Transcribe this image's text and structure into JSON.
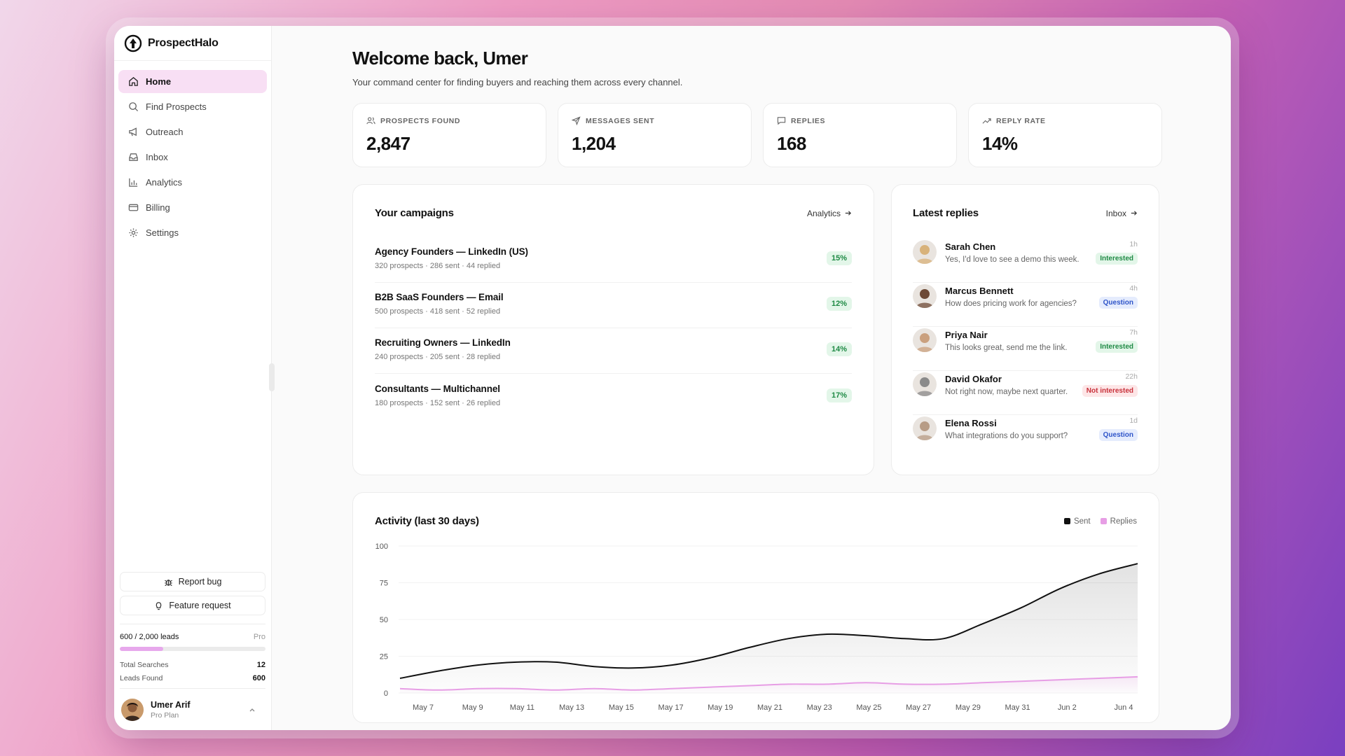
{
  "brand": {
    "name": "ProspectHalo"
  },
  "nav": [
    {
      "label": "Home",
      "icon": "home-icon",
      "active": true
    },
    {
      "label": "Find Prospects",
      "icon": "search-icon"
    },
    {
      "label": "Outreach",
      "icon": "megaphone-icon"
    },
    {
      "label": "Inbox",
      "icon": "inbox-icon"
    },
    {
      "label": "Analytics",
      "icon": "bar-chart-icon"
    },
    {
      "label": "Billing",
      "icon": "credit-card-icon"
    },
    {
      "label": "Settings",
      "icon": "gear-icon"
    }
  ],
  "sidebar": {
    "report_bug": "Report bug",
    "feature_request": "Feature request",
    "usage": {
      "label": "600 / 2,000 leads",
      "plan": "Pro",
      "fraction": 0.3
    },
    "total_searches_label": "Total Searches",
    "total_searches": "12",
    "leads_found_label": "Leads Found",
    "leads_found": "600",
    "user": {
      "name": "Umer Arif",
      "plan": "Pro Plan"
    }
  },
  "header": {
    "title": "Welcome back, Umer",
    "subtitle": "Your command center for finding buyers and reaching them across every channel."
  },
  "kpis": [
    {
      "label": "Prospects Found",
      "value": "2,847",
      "icon": "users-icon"
    },
    {
      "label": "Messages Sent",
      "value": "1,204",
      "icon": "send-icon"
    },
    {
      "label": "Replies",
      "value": "168",
      "icon": "message-icon"
    },
    {
      "label": "Reply Rate",
      "value": "14%",
      "icon": "trending-up-icon"
    }
  ],
  "campaigns": {
    "title": "Your campaigns",
    "link": "Analytics",
    "items": [
      {
        "name": "Agency Founders — LinkedIn (US)",
        "meta": "320 prospects · 286 sent · 44 replied",
        "rate": "15%"
      },
      {
        "name": "B2B SaaS Founders — Email",
        "meta": "500 prospects · 418 sent · 52 replied",
        "rate": "12%"
      },
      {
        "name": "Recruiting Owners — LinkedIn",
        "meta": "240 prospects · 205 sent · 28 replied",
        "rate": "14%"
      },
      {
        "name": "Consultants — Multichannel",
        "meta": "180 prospects · 152 sent · 26 replied",
        "rate": "17%"
      }
    ]
  },
  "replies": {
    "title": "Latest replies",
    "link": "Inbox",
    "items": [
      {
        "name": "Sarah Chen",
        "text": "Yes, I'd love to see a demo this week.",
        "time": "1h",
        "status": "Interested",
        "kind": "interested",
        "color": "#d8b27a"
      },
      {
        "name": "Marcus Bennett",
        "text": "How does pricing work for agencies?",
        "time": "4h",
        "status": "Question",
        "kind": "question",
        "color": "#6e4a36"
      },
      {
        "name": "Priya Nair",
        "text": "This looks great, send me the link.",
        "time": "7h",
        "status": "Interested",
        "kind": "interested",
        "color": "#caa07e"
      },
      {
        "name": "David Okafor",
        "text": "Not right now, maybe next quarter.",
        "time": "22h",
        "status": "Not interested",
        "kind": "not",
        "color": "#8a8a8a"
      },
      {
        "name": "Elena Rossi",
        "text": "What integrations do you support?",
        "time": "1d",
        "status": "Question",
        "kind": "question",
        "color": "#b79c86"
      }
    ]
  },
  "activity": {
    "title": "Activity (last 30 days)",
    "legend": [
      "Sent",
      "Replies"
    ]
  },
  "chart_data": {
    "type": "area",
    "title": "Activity (last 30 days)",
    "x_ticks": [
      "May 7",
      "May 9",
      "May 11",
      "May 13",
      "May 15",
      "May 17",
      "May 19",
      "May 21",
      "May 23",
      "May 25",
      "May 27",
      "May 29",
      "May 31",
      "Jun 2",
      "Jun 4"
    ],
    "ylim": [
      0,
      100
    ],
    "y_ticks": [
      0,
      25,
      50,
      75,
      100
    ],
    "grid": true,
    "legend_position": "top-right",
    "series": [
      {
        "name": "Sent",
        "color": "#111111",
        "values": [
          10,
          15,
          19,
          21,
          21,
          18,
          17,
          19,
          24,
          31,
          37,
          40,
          39,
          37,
          37,
          47,
          58,
          71,
          81,
          88
        ]
      },
      {
        "name": "Replies",
        "color": "#e79ee5",
        "values": [
          3,
          2,
          3,
          3,
          2,
          3,
          2,
          3,
          4,
          5,
          6,
          6,
          7,
          6,
          6,
          7,
          8,
          9,
          10,
          11
        ]
      }
    ],
    "x_points": [
      "May 5",
      "May 7",
      "May 9",
      "May 10",
      "May 12",
      "May 14",
      "May 15",
      "May 17",
      "May 19",
      "May 21",
      "May 22",
      "May 24",
      "May 26",
      "May 27",
      "May 29",
      "May 30",
      "Jun 1",
      "Jun 2",
      "Jun 3",
      "Jun 5"
    ]
  }
}
